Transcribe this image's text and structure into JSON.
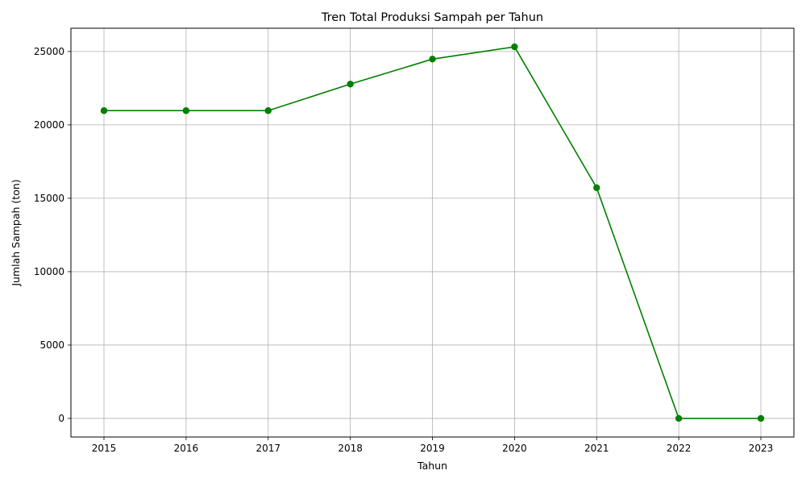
{
  "chart_data": {
    "type": "line",
    "title": "Tren Total Produksi Sampah per Tahun",
    "xlabel": "Tahun",
    "ylabel": "Jumlah Sampah (ton)",
    "x": [
      "2015",
      "2016",
      "2017",
      "2018",
      "2019",
      "2020",
      "2021",
      "2022",
      "2023"
    ],
    "series": [
      {
        "values": [
          20970,
          20970,
          20970,
          22780,
          24480,
          25320,
          15720,
          0,
          0
        ],
        "color": "#008000",
        "marker": "circle"
      }
    ],
    "yticks": [
      0,
      5000,
      10000,
      15000,
      20000,
      25000
    ],
    "ylim": [
      -1266,
      26586
    ],
    "grid": true,
    "legend": "none"
  }
}
